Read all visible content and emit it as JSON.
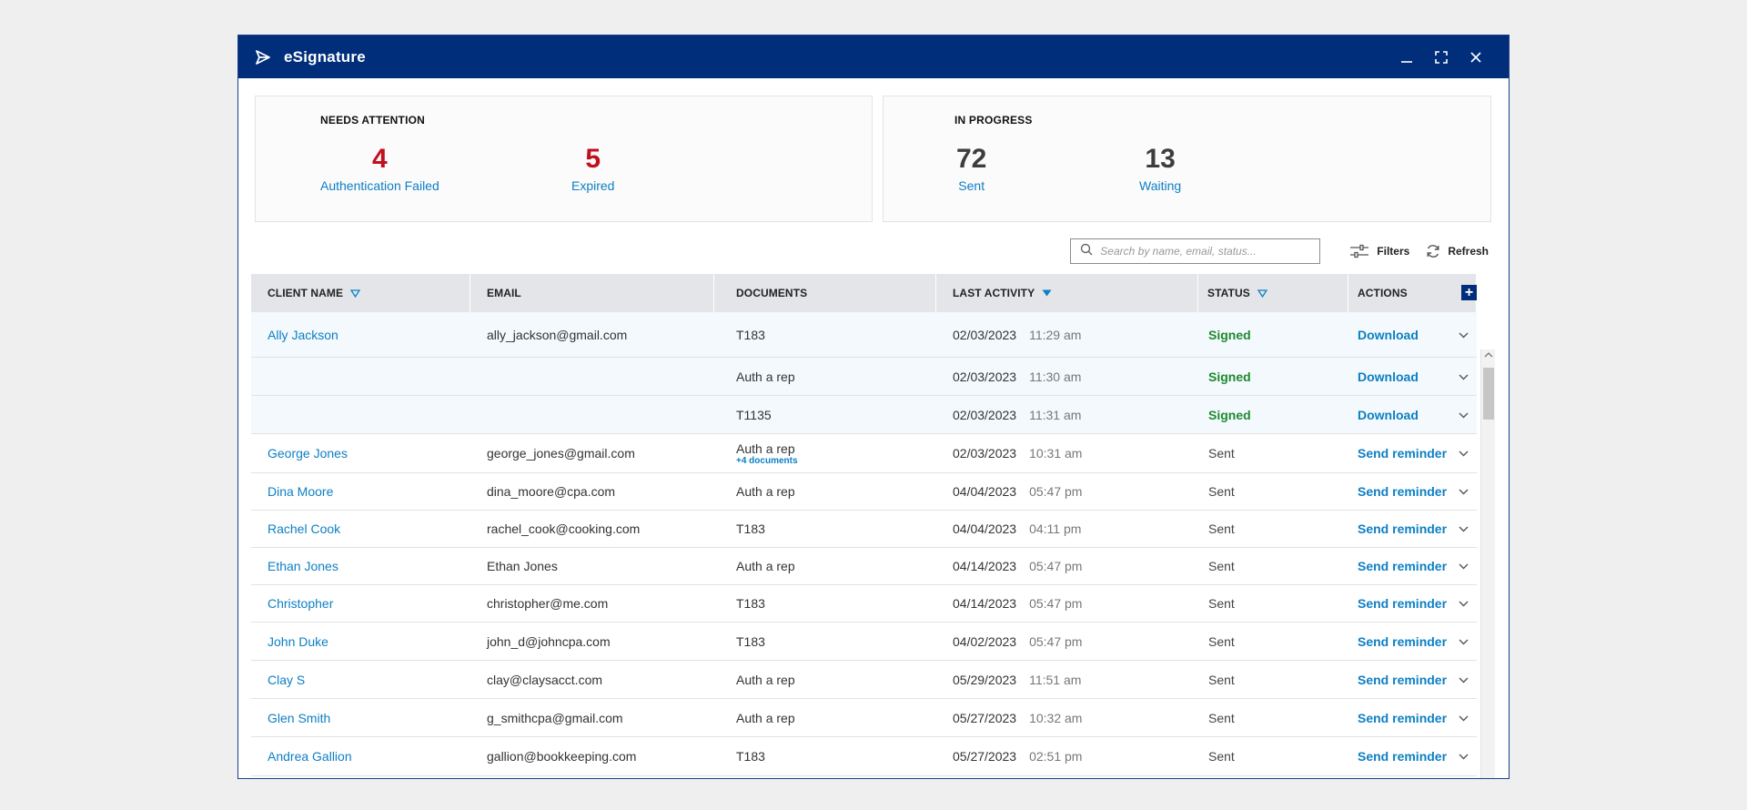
{
  "window": {
    "title": "eSignature"
  },
  "colors": {
    "titlebar": "#012e7b",
    "link": "#0d7fc4",
    "alert": "#c10f1f",
    "signed": "#1d8a2e"
  },
  "cards": {
    "attention": {
      "heading": "NEEDS ATTENTION",
      "stats": [
        {
          "value": "4",
          "label": "Authentication Failed"
        },
        {
          "value": "5",
          "label": "Expired"
        }
      ]
    },
    "progress": {
      "heading": "IN PROGRESS",
      "stats": [
        {
          "value": "72",
          "label": "Sent"
        },
        {
          "value": "13",
          "label": "Waiting"
        }
      ]
    }
  },
  "toolbar": {
    "search_placeholder": "Search by name, email, status...",
    "filters_label": "Filters",
    "refresh_label": "Refresh"
  },
  "table": {
    "columns": [
      "CLIENT NAME",
      "EMAIL",
      "DOCUMENTS",
      "LAST ACTIVITY",
      "STATUS",
      "ACTIONS"
    ],
    "rows": [
      {
        "name": "Ally Jackson",
        "email": "ally_jackson@gmail.com",
        "doc": "T183",
        "more": "",
        "date": "02/03/2023",
        "time": "11:29 am",
        "status": "Signed",
        "action": "Download"
      },
      {
        "name": "",
        "email": "",
        "doc": "Auth a rep",
        "more": "",
        "date": "02/03/2023",
        "time": "11:30 am",
        "status": "Signed",
        "action": "Download"
      },
      {
        "name": "",
        "email": "",
        "doc": "T1135",
        "more": "",
        "date": "02/03/2023",
        "time": "11:31 am",
        "status": "Signed",
        "action": "Download"
      },
      {
        "name": "George Jones",
        "email": "george_jones@gmail.com",
        "doc": "Auth a rep",
        "more": "+4 documents",
        "date": "02/03/2023",
        "time": "10:31 am",
        "status": "Sent",
        "action": "Send reminder"
      },
      {
        "name": "Dina Moore",
        "email": "dina_moore@cpa.com",
        "doc": "Auth a rep",
        "more": "",
        "date": "04/04/2023",
        "time": "05:47 pm",
        "status": "Sent",
        "action": "Send reminder"
      },
      {
        "name": "Rachel Cook",
        "email": "rachel_cook@cooking.com",
        "doc": "T183",
        "more": "",
        "date": "04/04/2023",
        "time": "04:11 pm",
        "status": "Sent",
        "action": "Send reminder"
      },
      {
        "name": "Ethan Jones",
        "email": "Ethan Jones",
        "doc": "Auth a rep",
        "more": "",
        "date": "04/14/2023",
        "time": "05:47 pm",
        "status": "Sent",
        "action": "Send reminder"
      },
      {
        "name": "Christopher",
        "email": "christopher@me.com",
        "doc": "T183",
        "more": "",
        "date": "04/14/2023",
        "time": "05:47 pm",
        "status": "Sent",
        "action": "Send reminder"
      },
      {
        "name": "John Duke",
        "email": "john_d@johncpa.com",
        "doc": "T183",
        "more": "",
        "date": "04/02/2023",
        "time": "05:47 pm",
        "status": "Sent",
        "action": "Send reminder"
      },
      {
        "name": "Clay S",
        "email": "clay@claysacct.com",
        "doc": "Auth a rep",
        "more": "",
        "date": "05/29/2023",
        "time": "11:51 am",
        "status": "Sent",
        "action": "Send reminder"
      },
      {
        "name": "Glen Smith",
        "email": "g_smithcpa@gmail.com",
        "doc": "Auth a rep",
        "more": "",
        "date": "05/27/2023",
        "time": "10:32 am",
        "status": "Sent",
        "action": "Send reminder"
      },
      {
        "name": "Andrea Gallion",
        "email": "gallion@bookkeeping.com",
        "doc": "T183",
        "more": "",
        "date": "05/27/2023",
        "time": "02:51 pm",
        "status": "Sent",
        "action": "Send reminder"
      }
    ]
  }
}
